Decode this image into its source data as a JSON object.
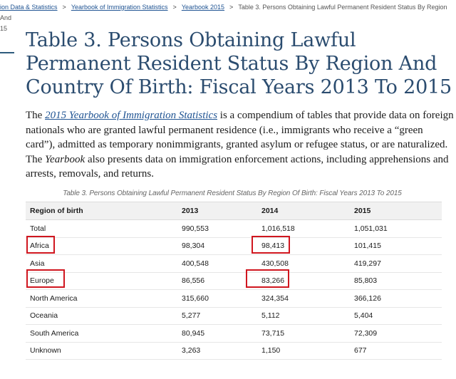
{
  "breadcrumb": {
    "items": [
      {
        "label": "ion Data & Statistics"
      },
      {
        "label": "Yearbook of Immigration Statistics"
      },
      {
        "label": "Yearbook 2015"
      },
      {
        "label": "Table 3. Persons Obtaining Lawful Permanent Resident Status By Region And"
      }
    ],
    "wrap": "15"
  },
  "page": {
    "title": "Table 3. Persons Obtaining Lawful Permanent Resident Status By Region And Country Of Birth: Fiscal Years 2013 To 2015"
  },
  "intro": {
    "lead": "The ",
    "link": "2015 Yearbook of Immigration Statistics",
    "after_link": " is a compendium of tables that provide data on foreign",
    "line2": "nationals who are granted lawful permanent residence (i.e., immigrants who receive a “green",
    "line3": "card”), admitted as temporary nonimmigrants, granted asylum or refugee status, or are naturalized.",
    "line4_lead": "The ",
    "line4_em": "Yearbook",
    "line4_rest": " also presents data on immigration enforcement actions, including apprehensions and",
    "line5": "arrests, removals, and returns."
  },
  "table": {
    "caption": "Table 3. Persons Obtaining Lawful Permanent Resident Status By Region Of Birth: Fiscal Years 2013 To 2015",
    "headers": [
      "Region of birth",
      "2013",
      "2014",
      "2015"
    ],
    "rows": [
      [
        "Total",
        "990,553",
        "1,016,518",
        "1,051,031"
      ],
      [
        "Africa",
        "98,304",
        "98,413",
        "101,415"
      ],
      [
        "Asia",
        "400,548",
        "430,508",
        "419,297"
      ],
      [
        "Europe",
        "86,556",
        "83,266",
        "85,803"
      ],
      [
        "North America",
        "315,660",
        "324,354",
        "366,126"
      ],
      [
        "Oceania",
        "5,277",
        "5,112",
        "5,404"
      ],
      [
        "South America",
        "80,945",
        "73,715",
        "72,309"
      ],
      [
        "Unknown",
        "3,263",
        "1,150",
        "677"
      ]
    ]
  },
  "colors": {
    "highlight": "#d0161f",
    "title": "#2b4c6f",
    "link": "#205493"
  }
}
